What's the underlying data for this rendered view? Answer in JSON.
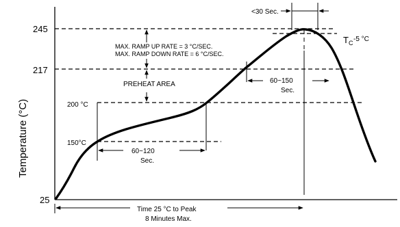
{
  "chart_data": {
    "type": "line",
    "ylabel": "Temperature (°C)",
    "y_tick_labels": [
      "25",
      "217",
      "245"
    ],
    "annotations": {
      "t30": "<30 Sec.",
      "tc_main": "T",
      "tc_sub": "C",
      "tc_rest": "-5 °C",
      "ramp1": "MAX. RAMP UP RATE = 3 °C/SEC.",
      "ramp2": "MAX. RAMP DOWN RATE = 6 °C/SEC.",
      "preheat": "PREHEAT AREA",
      "l200": "200 °C",
      "l150": "150°C",
      "d60_120": "60~120",
      "sec1": "Sec.",
      "d60_150": "60~150",
      "sec2": "Sec.",
      "time1": "Time 25 °C to Peak",
      "time2": "8 Minutes Max."
    }
  }
}
